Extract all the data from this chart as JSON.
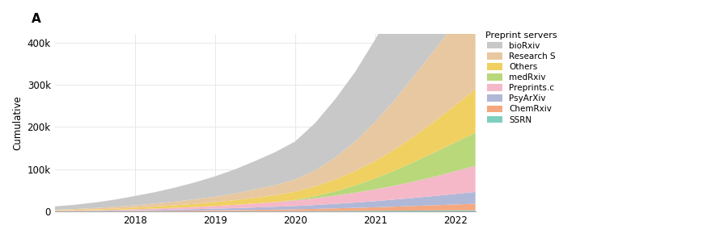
{
  "title_label": "A",
  "ylabel": "Cumulative",
  "legend_title": "Preprint servers",
  "x_years": [
    2017.0,
    2017.25,
    2017.5,
    2017.75,
    2018.0,
    2018.25,
    2018.5,
    2018.75,
    2019.0,
    2019.25,
    2019.5,
    2019.75,
    2020.0,
    2020.25,
    2020.5,
    2020.75,
    2021.0,
    2021.25,
    2021.5,
    2021.75,
    2022.0,
    2022.25
  ],
  "series": {
    "SSRN": [
      200,
      250,
      300,
      350,
      400,
      450,
      500,
      550,
      600,
      700,
      800,
      900,
      1000,
      1200,
      1400,
      1600,
      1800,
      2000,
      2200,
      2400,
      2600,
      2800
    ],
    "ChemRxiv": [
      300,
      400,
      500,
      700,
      900,
      1100,
      1400,
      1700,
      2100,
      2500,
      3000,
      3600,
      4200,
      5000,
      6000,
      7000,
      8200,
      9500,
      11000,
      12500,
      14000,
      15500
    ],
    "PsyArXiv": [
      400,
      600,
      900,
      1200,
      1600,
      2100,
      2700,
      3300,
      4000,
      4800,
      5700,
      6700,
      7800,
      9200,
      10800,
      12500,
      14500,
      17000,
      19500,
      22000,
      25000,
      28000
    ],
    "Preprints.c": [
      600,
      900,
      1300,
      1800,
      2500,
      3300,
      4200,
      5200,
      6400,
      7800,
      9400,
      11200,
      13200,
      16000,
      19500,
      23500,
      28000,
      33000,
      39000,
      46000,
      54000,
      62000
    ],
    "medRxiv": [
      0,
      0,
      0,
      0,
      0,
      0,
      0,
      0,
      0,
      0,
      0,
      0,
      1500,
      5000,
      10000,
      17000,
      26000,
      36000,
      47000,
      58000,
      68000,
      78000
    ],
    "Others": [
      1000,
      1500,
      2100,
      2800,
      3700,
      4700,
      5900,
      7300,
      9000,
      11000,
      13500,
      16000,
      19000,
      23000,
      28000,
      34000,
      41000,
      50000,
      61000,
      74000,
      88000,
      103000
    ],
    "Research S": [
      1500,
      2200,
      3100,
      4200,
      5500,
      7000,
      8800,
      10800,
      13000,
      16000,
      20000,
      24000,
      29000,
      38000,
      52000,
      70000,
      93000,
      118000,
      145000,
      170000,
      195000,
      218000
    ],
    "bioRxiv": [
      8000,
      10000,
      13000,
      17000,
      22000,
      27000,
      33000,
      40000,
      48000,
      57000,
      67000,
      78000,
      90000,
      112000,
      138000,
      165000,
      195000,
      225000,
      255000,
      280000,
      300000,
      315000
    ]
  },
  "colors": {
    "SSRN": "#7ecfbf",
    "ChemRxiv": "#f5a87f",
    "PsyArXiv": "#b0b8d8",
    "Preprints.c": "#f5b8c8",
    "medRxiv": "#b8d87a",
    "Others": "#f0d060",
    "Research S": "#e8c8a0",
    "bioRxiv": "#c8c8c8"
  },
  "ylim": [
    0,
    420000
  ],
  "yticks": [
    0,
    100000,
    200000,
    300000,
    400000
  ],
  "ytick_labels": [
    "0",
    "100k",
    "200k",
    "300k",
    "400k"
  ],
  "xticks": [
    2018,
    2019,
    2020,
    2021,
    2022
  ],
  "background_color": "#ffffff",
  "grid_color": "#e8e8e8"
}
